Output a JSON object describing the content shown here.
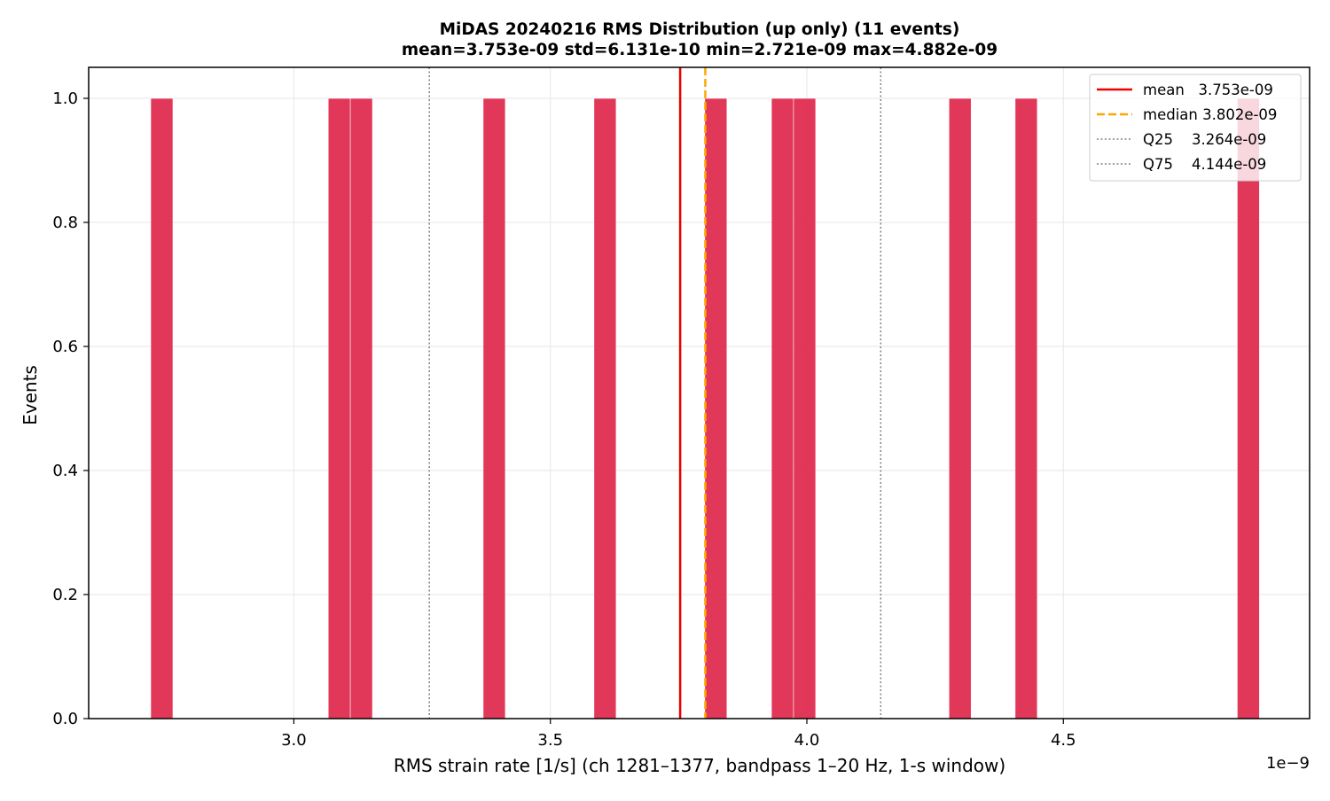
{
  "chart_data": {
    "type": "bar",
    "title_line1": "MiDAS 20240216  RMS Distribution  (up only)  (11 events)",
    "title_line2": "mean=3.753e-09  std=6.131e-10  min=2.721e-09  max=4.882e-09",
    "xlabel": "RMS strain rate [1/s]  (ch 1281–1377, bandpass 1–20 Hz, 1-s window)",
    "ylabel": "Events",
    "x_offset_label": "1e−9",
    "x_scale": 1e-09,
    "xlim": [
      2.6,
      4.98
    ],
    "ylim": [
      0,
      1.05
    ],
    "bin_width": 0.0432,
    "x_ticks": [
      {
        "value": 3.0,
        "label": "3.0"
      },
      {
        "value": 3.5,
        "label": "3.5"
      },
      {
        "value": 4.0,
        "label": "4.0"
      },
      {
        "value": 4.5,
        "label": "4.5"
      }
    ],
    "y_ticks": [
      {
        "value": 0.0,
        "label": "0.0"
      },
      {
        "value": 0.2,
        "label": "0.2"
      },
      {
        "value": 0.4,
        "label": "0.4"
      },
      {
        "value": 0.6,
        "label": "0.6"
      },
      {
        "value": 0.8,
        "label": "0.8"
      },
      {
        "value": 1.0,
        "label": "1.0"
      }
    ],
    "bins": [
      {
        "x": 2.721,
        "count": 1
      },
      {
        "x": 3.067,
        "count": 1
      },
      {
        "x": 3.11,
        "count": 1
      },
      {
        "x": 3.369,
        "count": 1
      },
      {
        "x": 3.585,
        "count": 1
      },
      {
        "x": 3.801,
        "count": 1
      },
      {
        "x": 3.931,
        "count": 1
      },
      {
        "x": 3.974,
        "count": 1
      },
      {
        "x": 4.277,
        "count": 1
      },
      {
        "x": 4.406,
        "count": 1
      },
      {
        "x": 4.839,
        "count": 1
      }
    ],
    "bar_color": "#dc143c",
    "grid": true,
    "legend_position": "upper right",
    "reference_lines": [
      {
        "key": "mean",
        "label": "mean   3.753e-09",
        "value": 3.753,
        "color": "#ee0000",
        "style": "solid"
      },
      {
        "key": "median",
        "label": "median 3.802e-09",
        "value": 3.802,
        "color": "#ffa500",
        "style": "dashed"
      },
      {
        "key": "q25",
        "label": "Q25    3.264e-09",
        "value": 3.264,
        "color": "#808080",
        "style": "dotted"
      },
      {
        "key": "q75",
        "label": "Q75    4.144e-09",
        "value": 4.144,
        "color": "#808080",
        "style": "dotted"
      }
    ]
  }
}
